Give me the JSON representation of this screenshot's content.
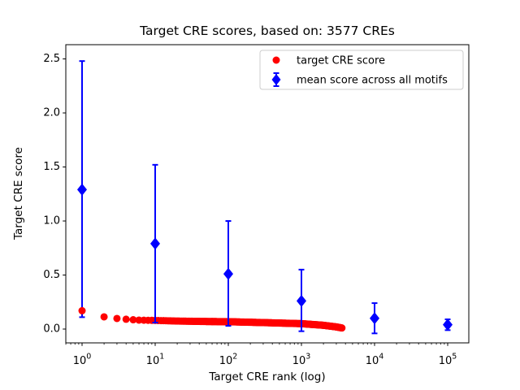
{
  "window": {
    "background": "#ffffff"
  },
  "chart_data": {
    "type": "scatter",
    "title": "Target CRE scores, based on: 3577 CREs",
    "xlabel": "Target CRE rank (log)",
    "ylabel": "Target CRE score",
    "x_scale": "log",
    "y_scale": "linear",
    "xlim": [
      0.6,
      194000
    ],
    "ylim": [
      -0.13,
      2.61
    ],
    "x_tick_base": "10",
    "x_tick_exponents": [
      0,
      1,
      2,
      3,
      4,
      5
    ],
    "y_ticks": [
      "0.0",
      "0.5",
      "1.0",
      "1.5",
      "2.0",
      "2.5"
    ],
    "grid": false,
    "legend": {
      "position": "upper right inside axes",
      "border_color": "#cccccc"
    },
    "colors": {
      "target_series": "#ff0000",
      "mean_series": "#0000ff",
      "axes": "#000000"
    },
    "series": [
      {
        "name": "target CRE score",
        "marker": "circle",
        "color": "#ff0000",
        "n_points": 3577,
        "note": "scores for ranks 1..3577, decreasing; sampled anchor points read from plot",
        "anchors": {
          "ranks": [
            1,
            2,
            3,
            4,
            5,
            6,
            8,
            10,
            20,
            50,
            100,
            300,
            1000,
            2000,
            3000,
            3577
          ],
          "scores": [
            0.17,
            0.113,
            0.098,
            0.091,
            0.086,
            0.083,
            0.081,
            0.08,
            0.074,
            0.07,
            0.068,
            0.06,
            0.05,
            0.035,
            0.02,
            0.01
          ]
        }
      },
      {
        "name": "mean score across all motifs",
        "marker": "diamond",
        "color": "#0000ff",
        "x": [
          1,
          10,
          100,
          1000,
          10000,
          100000
        ],
        "y": [
          1.29,
          0.79,
          0.51,
          0.26,
          0.1,
          0.04
        ],
        "whisker_low": [
          0.11,
          0.06,
          0.03,
          -0.02,
          -0.04,
          -0.01
        ],
        "whisker_high": [
          2.48,
          1.52,
          1.0,
          0.55,
          0.24,
          0.09
        ]
      }
    ]
  }
}
